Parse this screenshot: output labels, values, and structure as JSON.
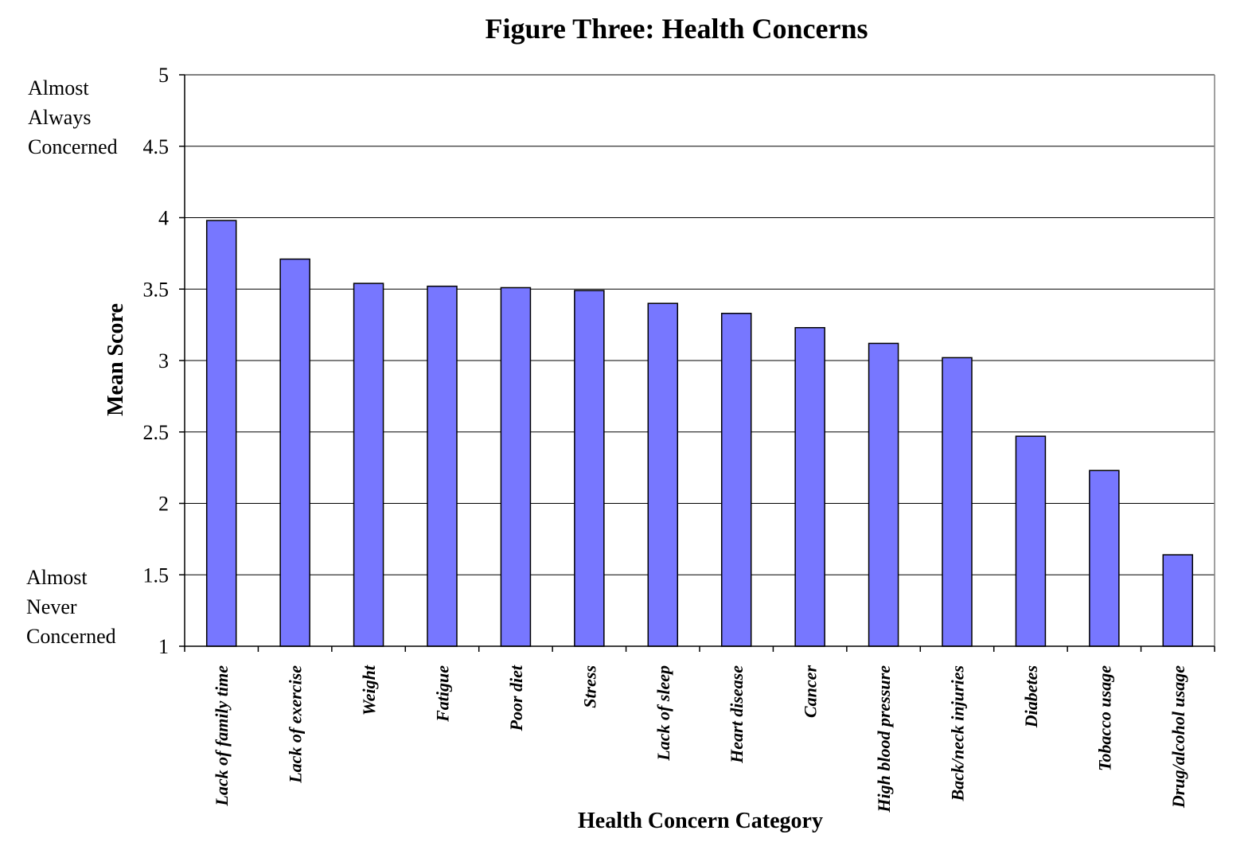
{
  "chart_data": {
    "type": "bar",
    "title": "Figure Three:  Health Concerns",
    "xlabel": "Health Concern Category",
    "ylabel": "Mean Score",
    "ylim": [
      1,
      5
    ],
    "yticks": [
      "1",
      "1.5",
      "2",
      "2.5",
      "3",
      "3.5",
      "4",
      "4.5",
      "5"
    ],
    "y_anchor_labels": {
      "high": [
        "Almost",
        "Always",
        "Concerned"
      ],
      "low": [
        "Almost",
        "Never",
        "Concerned"
      ]
    },
    "grid": true,
    "bar_color": "#7777FF",
    "categories": [
      "Lack of family time",
      "Lack of exercise",
      "Weight",
      "Fatigue",
      "Poor diet",
      "Stress",
      "Lack of sleep",
      "Heart disease",
      "Cancer",
      "High blood pressure",
      "Back/neck injuries",
      "Diabetes",
      "Tobacco usage",
      "Drug/alcohol usage"
    ],
    "values": [
      3.98,
      3.71,
      3.54,
      3.52,
      3.51,
      3.49,
      3.4,
      3.33,
      3.23,
      3.12,
      3.02,
      2.47,
      2.23,
      1.64
    ]
  }
}
